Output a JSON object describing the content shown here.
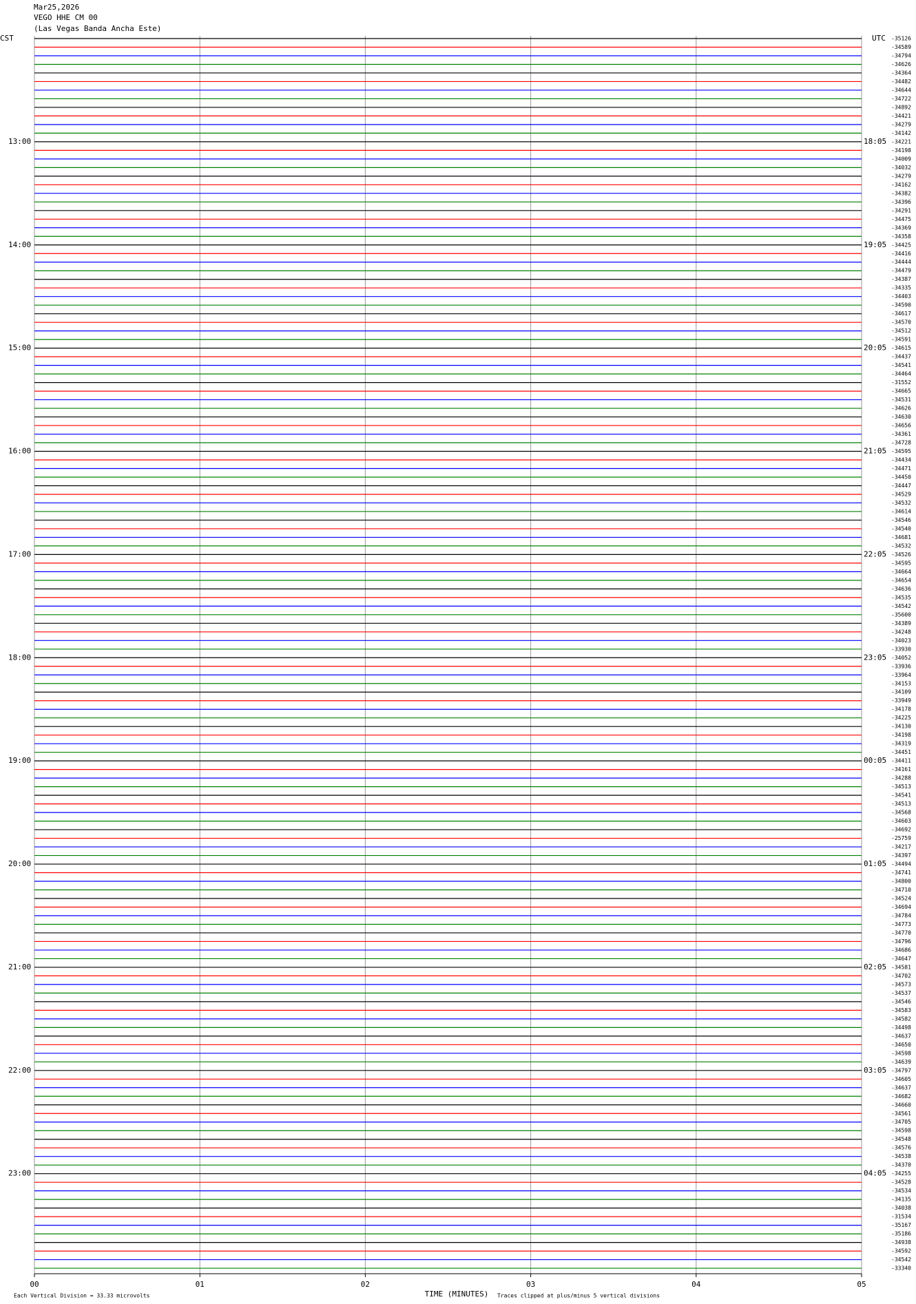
{
  "chart_data": {
    "type": "helicorder",
    "header": [
      "Mar25,2026",
      "VEGO HHE CM 00",
      "(Las Vegas Banda Ancha Este)"
    ],
    "left_axis_title": "CST",
    "right_axis_title": "UTC",
    "left_hour_labels": [
      "13:00",
      "14:00",
      "15:00",
      "16:00",
      "17:00",
      "18:00",
      "19:00",
      "20:00",
      "21:00",
      "22:00",
      "23:00"
    ],
    "right_hour_labels": [
      "18:05",
      "19:05",
      "20:05",
      "21:05",
      "22:05",
      "23:05",
      "00:05",
      "01:05",
      "02:05",
      "03:05",
      "04:05"
    ],
    "trace_colors": [
      "#000000",
      "#ff0000",
      "#0000ff",
      "#008000"
    ],
    "trace_offsets": [
      -35126,
      -34589,
      -34794,
      -34626,
      -34364,
      -34482,
      -34644,
      -34722,
      -34892,
      -34421,
      -34279,
      -34142,
      -34221,
      -34198,
      -34009,
      -34032,
      -34279,
      -34162,
      -34382,
      -34396,
      -34291,
      -34475,
      -34369,
      -34358,
      -34425,
      -34416,
      -34444,
      -34479,
      -34387,
      -34335,
      -34403,
      -34590,
      -34617,
      -34570,
      -34512,
      -34591,
      -34615,
      -34437,
      -34541,
      -34464,
      -31552,
      -34665,
      -34531,
      -34626,
      -34630,
      -34656,
      -34361,
      -34728,
      -34595,
      -34434,
      -34471,
      -34450,
      -34447,
      -34529,
      -34532,
      -34614,
      -34546,
      -34540,
      -34681,
      -34532,
      -34526,
      -34595,
      -34664,
      -34654,
      -34636,
      -34535,
      -34542,
      -35600,
      -34389,
      -34248,
      -34023,
      -33930,
      -34052,
      -33936,
      -33964,
      -34153,
      -34109,
      -33949,
      -34178,
      -34225,
      -34130,
      -34198,
      -34319,
      -34451,
      -34411,
      -34161,
      -34288,
      -34513,
      -34541,
      -34513,
      -34568,
      -34603,
      -34692,
      -25759,
      -34217,
      -34397,
      -34494,
      -34741,
      -34800,
      -34710,
      -34524,
      -34694,
      -34784,
      -34773,
      -34770,
      -34796,
      -34686,
      -34647,
      -34581,
      -34702,
      -34573,
      -34537,
      -34546,
      -34583,
      -34582,
      -34498,
      -34637,
      -34650,
      -34598,
      -34639,
      -34797,
      -34605,
      -34637,
      -34682,
      -34660,
      -34561,
      -34705,
      -34598,
      -34548,
      -34576,
      -34538,
      -34370,
      -34255,
      -34528,
      -34534,
      -34135,
      -34038,
      -31534,
      -35167,
      -35186,
      -34938,
      -34592,
      -34542,
      -33340
    ],
    "xlim": [
      0,
      5
    ],
    "xticks": [
      {
        "value": 0,
        "label": "00"
      },
      {
        "value": 1,
        "label": "01"
      },
      {
        "value": 2,
        "label": "02"
      },
      {
        "value": 3,
        "label": "03"
      },
      {
        "value": 4,
        "label": "04"
      },
      {
        "value": 5,
        "label": "05"
      }
    ],
    "xlabel": "TIME (MINUTES)",
    "footnotes": [
      "Each Vertical Division = 33.33 microvolts",
      "Traces clipped at plus/minus 5 vertical divisions"
    ],
    "grid": true
  }
}
